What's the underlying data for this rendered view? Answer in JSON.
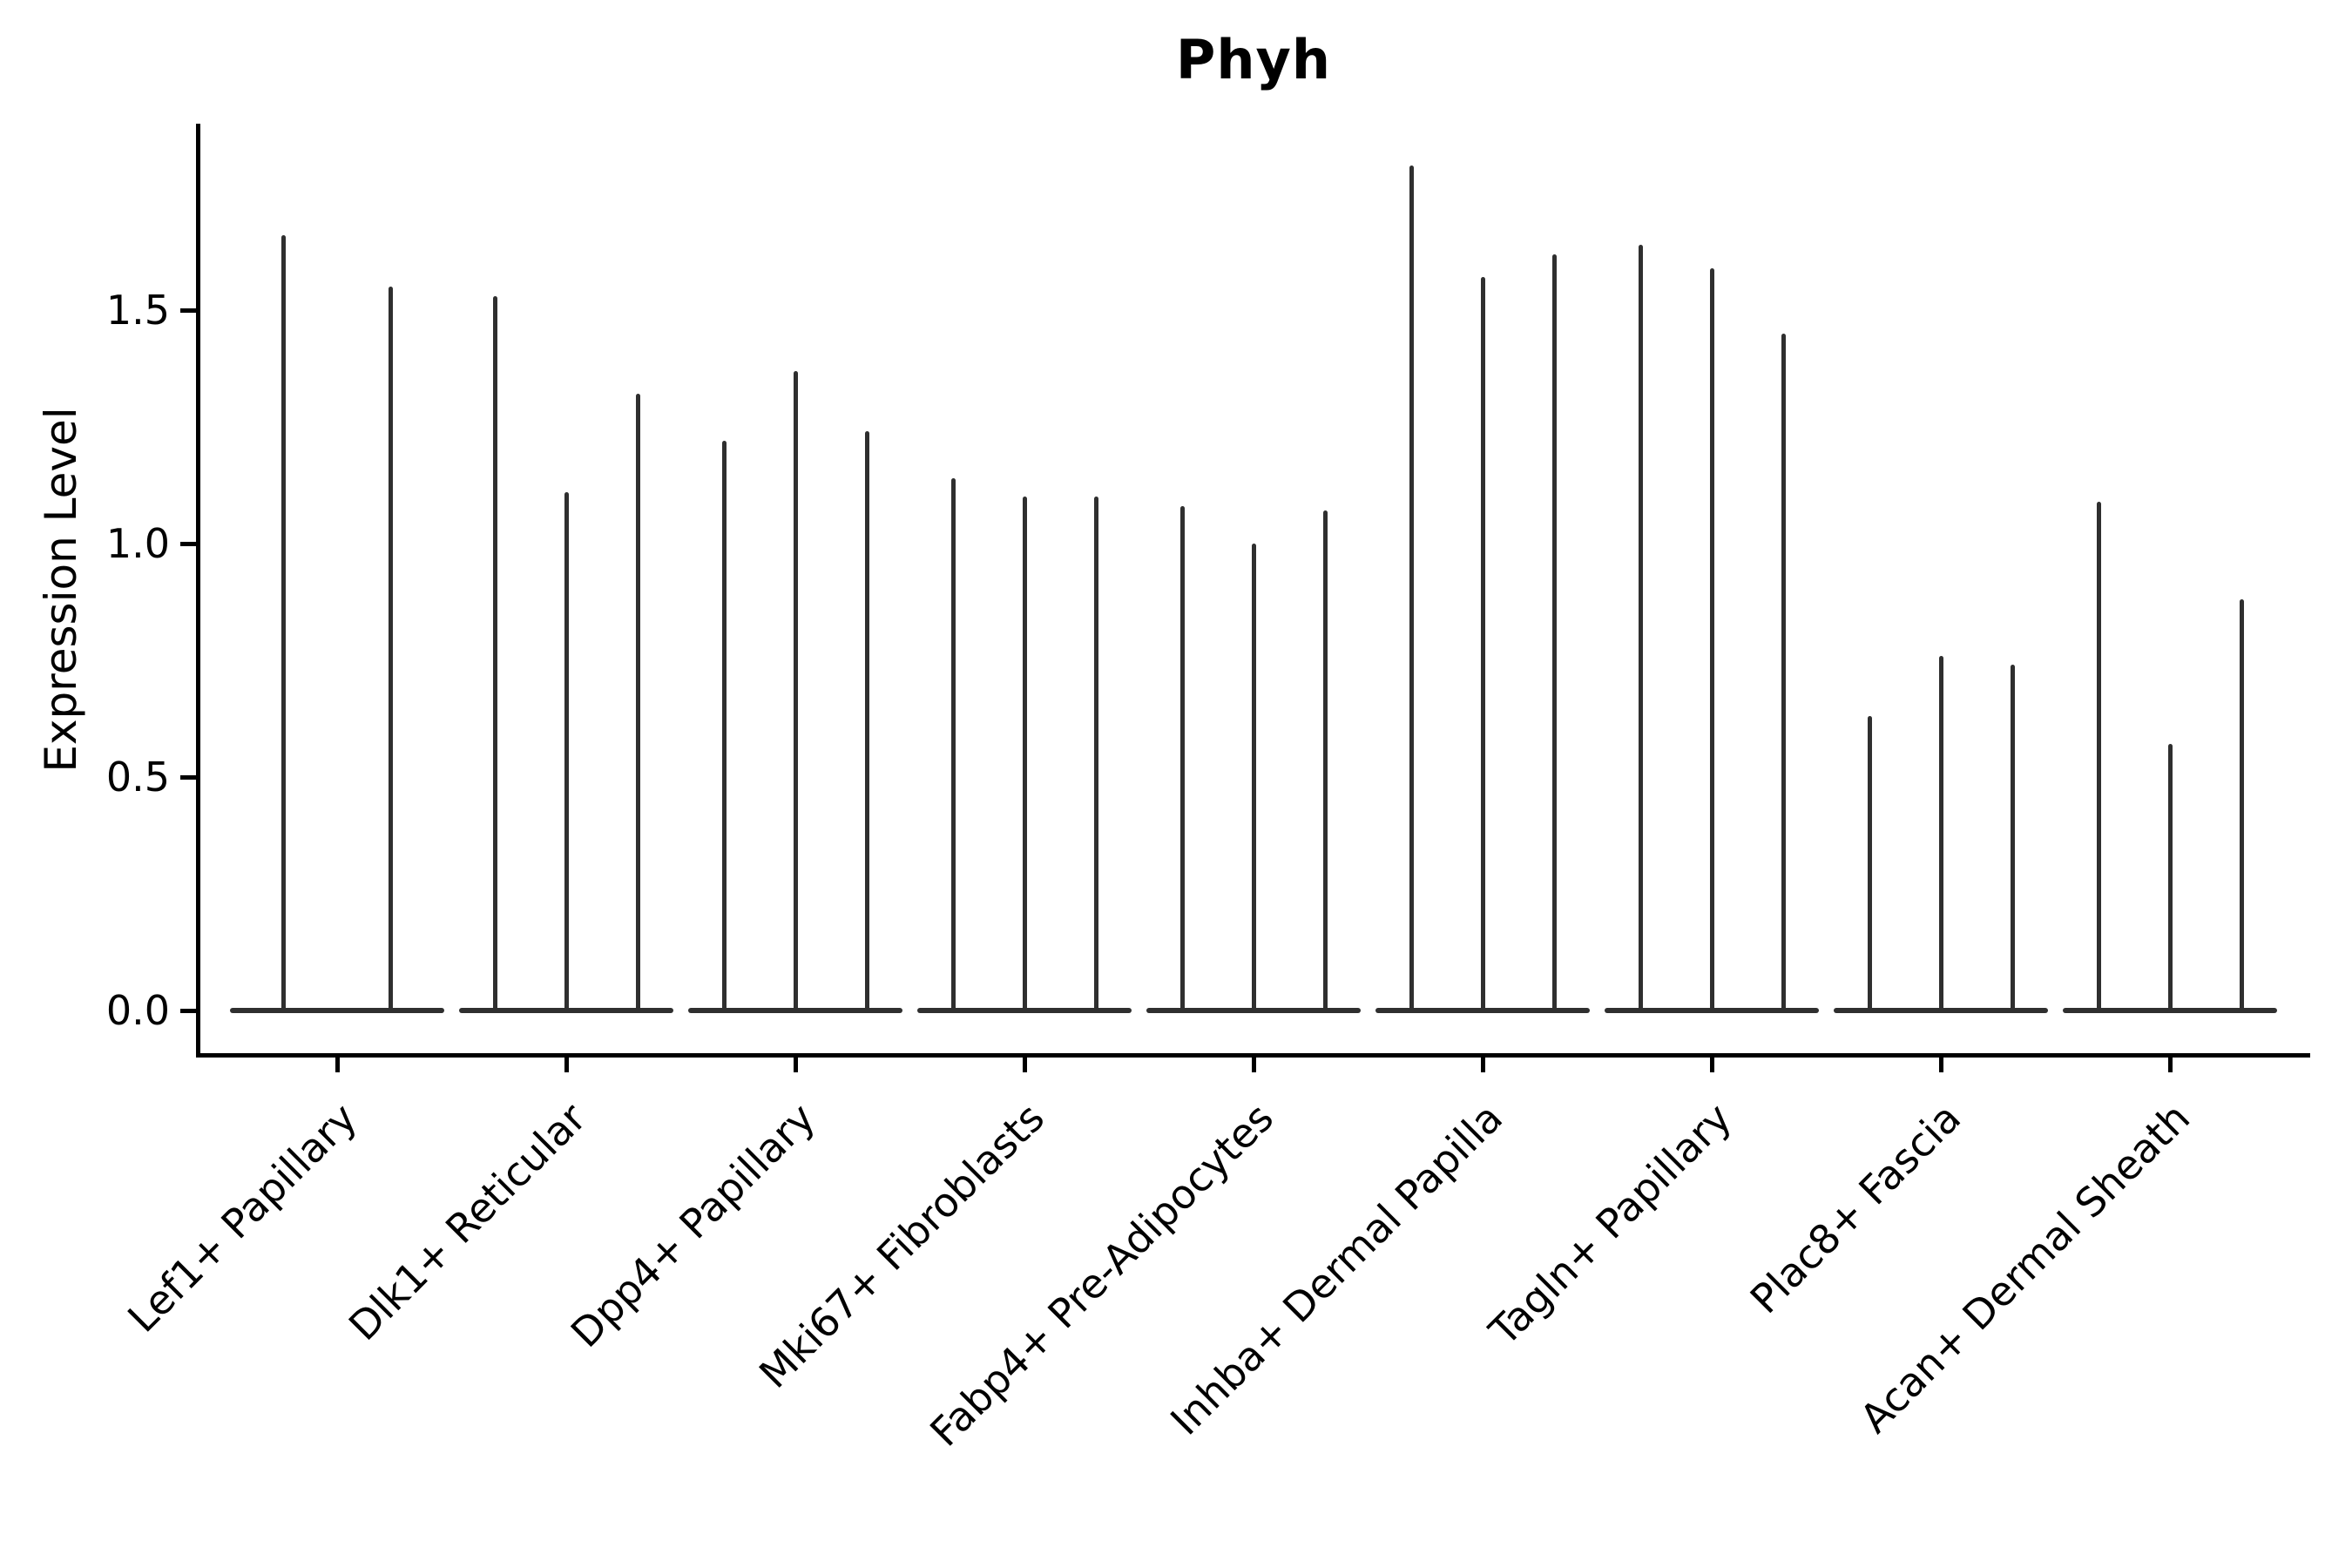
{
  "chart_data": {
    "type": "violin",
    "title": "Phyh",
    "ylabel": "Expression Level",
    "xlabel": "",
    "ylim": [
      -0.09,
      1.9
    ],
    "yticks": [
      0.0,
      0.5,
      1.0,
      1.5
    ],
    "ytick_labels": [
      "0.0",
      "0.5",
      "1.0",
      "1.5"
    ],
    "grid": false,
    "legend": "none",
    "violin_color": "#2f2f2f",
    "axis_color": "#000000",
    "categories": [
      "Lef1+ Papillary",
      "Dlk1+ Reticular",
      "Dpp4+ Papillary",
      "Mki67+ Fibroblasts",
      "Fabp4+ Pre-Adipocytes",
      "Inhba+ Dermal Papilla",
      "Tagln+ Papillary",
      "Plac8+ Fascia",
      "Acan+ Dermal Sheath"
    ],
    "series": [
      {
        "category": "Lef1+ Papillary",
        "violin_peaks": [
          1.66,
          1.55
        ]
      },
      {
        "category": "Dlk1+ Reticular",
        "violin_peaks": [
          1.53,
          1.11,
          1.32
        ]
      },
      {
        "category": "Dpp4+ Papillary",
        "violin_peaks": [
          1.22,
          1.37,
          1.24
        ]
      },
      {
        "category": "Mki67+ Fibroblasts",
        "violin_peaks": [
          1.14,
          1.1,
          1.1
        ]
      },
      {
        "category": "Fabp4+ Pre-Adipocytes",
        "violin_peaks": [
          1.08,
          1.0,
          1.07
        ]
      },
      {
        "category": "Inhba+ Dermal Papilla",
        "violin_peaks": [
          1.81,
          1.57,
          1.62
        ]
      },
      {
        "category": "Tagln+ Papillary",
        "violin_peaks": [
          1.64,
          1.59,
          1.45
        ]
      },
      {
        "category": "Plac8+ Fascia",
        "violin_peaks": [
          0.63,
          0.76,
          0.74
        ]
      },
      {
        "category": "Acan+ Dermal Sheath",
        "violin_peaks": [
          1.09,
          0.57,
          0.88
        ]
      }
    ]
  }
}
